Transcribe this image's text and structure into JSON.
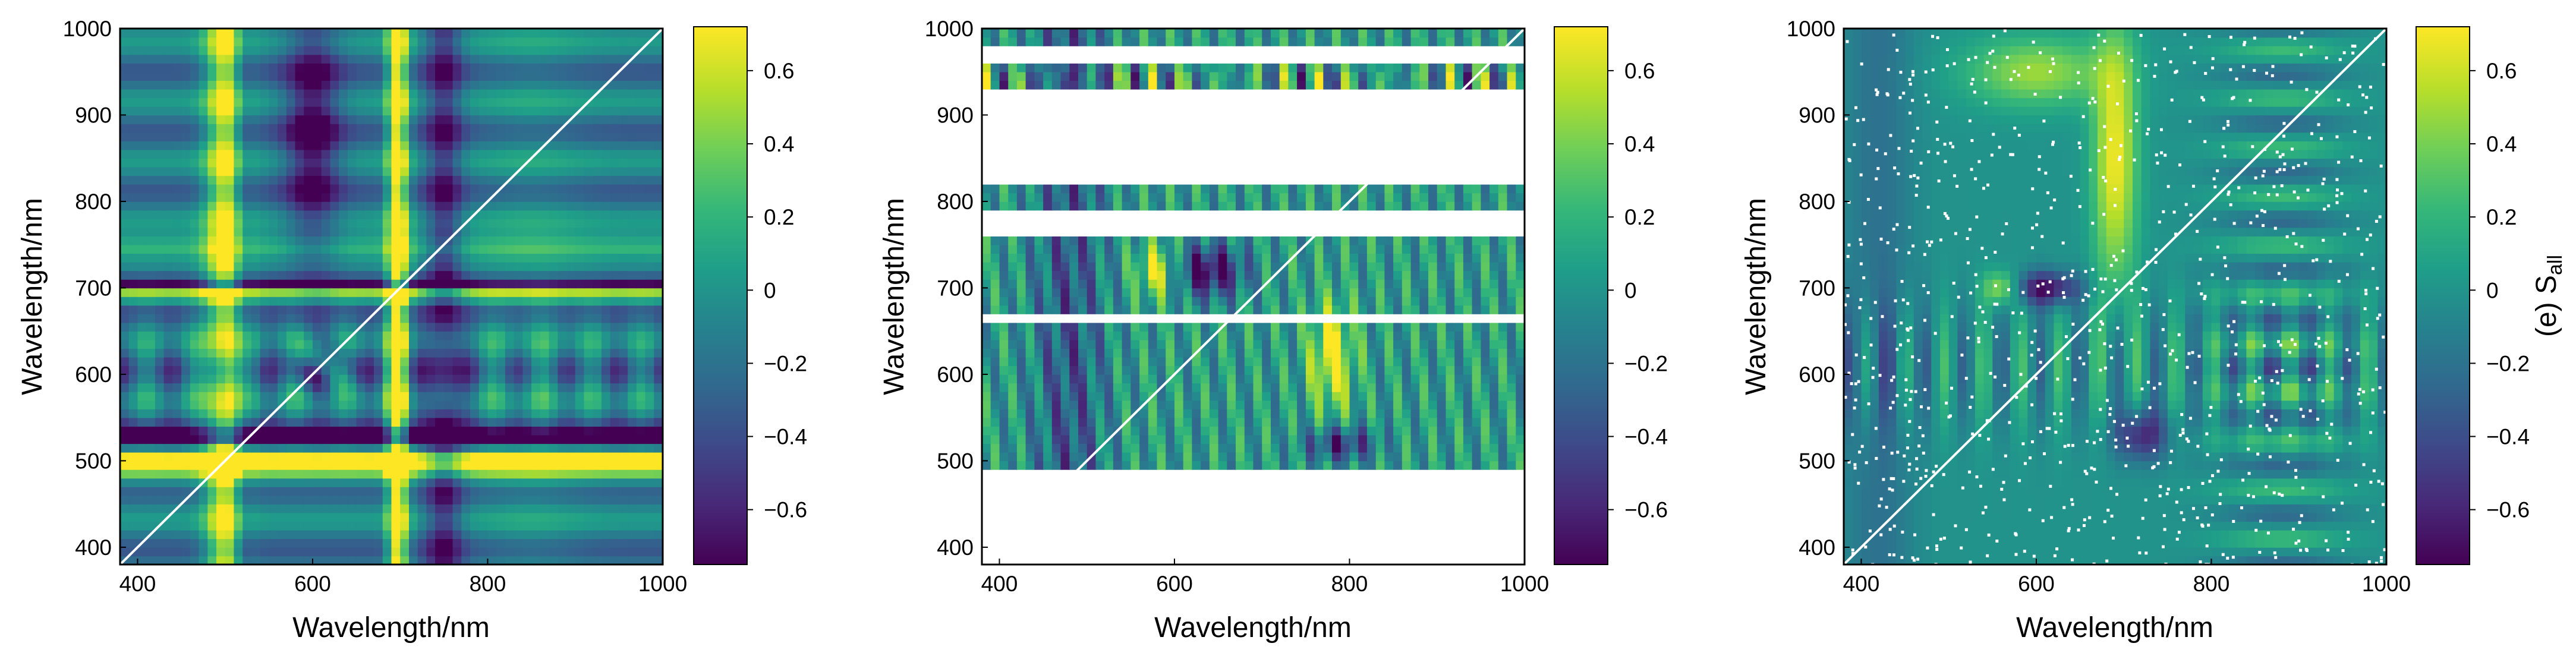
{
  "chart_data": [
    {
      "type": "heatmap",
      "panel": "left",
      "description_key": "full synchronous correlation map",
      "xlabel": "Wavelength/nm",
      "ylabel": "Wavelength/nm",
      "xlim": [
        380,
        1000
      ],
      "ylim": [
        380,
        1000
      ],
      "xticks": [
        400,
        600,
        800,
        1000
      ],
      "yticks": [
        400,
        500,
        600,
        700,
        800,
        900,
        1000
      ],
      "colorbar_label": "",
      "colorbar_range": [
        -0.75,
        0.72
      ],
      "colorbar_ticks": [
        -0.6,
        -0.4,
        -0.2,
        0,
        0.2,
        0.4,
        0.6
      ],
      "colorbar_tick_labels": [
        "−0.6",
        "−0.4",
        "−0.2",
        "0",
        "0.2",
        "0.4",
        "0.6"
      ],
      "diagonal": true,
      "positive_bands_nm": [
        [
          480,
          540
        ],
        [
          690,
          710
        ]
      ],
      "negative_bands_nm": [
        [
          500,
          530
        ],
        [
          690,
          705
        ]
      ],
      "masked_y_ranges_nm": [],
      "masked_x_ranges_nm": []
    },
    {
      "type": "heatmap",
      "panel": "middle",
      "xlabel": "Wavelength/nm",
      "ylabel": "Wavelength/nm",
      "xlim": [
        380,
        1000
      ],
      "ylim": [
        380,
        1000
      ],
      "xticks": [
        400,
        600,
        800,
        1000
      ],
      "yticks": [
        400,
        500,
        600,
        700,
        800,
        900,
        1000
      ],
      "colorbar_label": "",
      "colorbar_range": [
        -0.75,
        0.72
      ],
      "colorbar_ticks": [
        -0.6,
        -0.4,
        -0.2,
        0,
        0.2,
        0.4,
        0.6
      ],
      "colorbar_tick_labels": [
        "−0.6",
        "−0.4",
        "−0.2",
        "0",
        "0.2",
        "0.4",
        "0.6"
      ],
      "diagonal": true,
      "masked_y_ranges_nm": [
        [
          380,
          490
        ],
        [
          665,
          672
        ],
        [
          760,
          780
        ],
        [
          785,
          790
        ],
        [
          820,
          825
        ],
        [
          828,
          915
        ],
        [
          918,
          925
        ],
        [
          960,
          975
        ]
      ],
      "masked_x_ranges_nm": []
    },
    {
      "type": "heatmap",
      "panel": "right",
      "xlabel": "Wavelength/nm",
      "ylabel": "Wavelength/nm",
      "xlim": [
        380,
        1000
      ],
      "ylim": [
        380,
        1000
      ],
      "xticks": [
        400,
        600,
        800,
        1000
      ],
      "yticks": [
        400,
        500,
        600,
        700,
        800,
        900,
        1000
      ],
      "colorbar_label_main": "(e) S",
      "colorbar_label_sub": "all",
      "colorbar_range": [
        -0.75,
        0.72
      ],
      "colorbar_ticks": [
        -0.6,
        -0.4,
        -0.2,
        0,
        0.2,
        0.4,
        0.6
      ],
      "colorbar_tick_labels": [
        "−0.6",
        "−0.4",
        "−0.2",
        "0",
        "0.2",
        "0.4",
        "0.6"
      ],
      "diagonal": true,
      "masked_y_ranges_nm": [],
      "masked_x_ranges_nm": []
    }
  ],
  "colormap": {
    "name": "viridis",
    "stops": [
      "#440154",
      "#482878",
      "#3e4989",
      "#31688e",
      "#26828e",
      "#1f9e89",
      "#35b779",
      "#6ece58",
      "#b5de2b",
      "#fde725"
    ]
  }
}
